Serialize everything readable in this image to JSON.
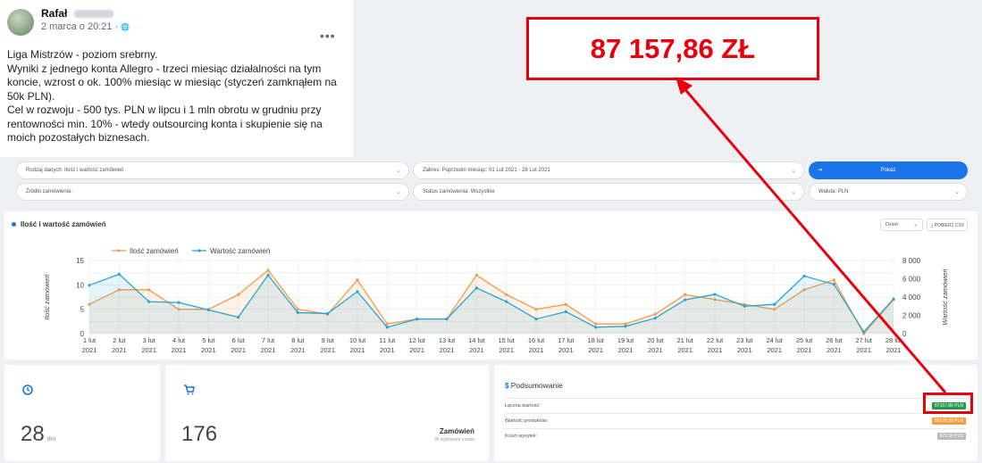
{
  "post": {
    "author": "Rafał",
    "date": "2 marca o 20:21 · ",
    "globe": "🌐",
    "more": "•••",
    "lines": [
      "Liga Mistrzów - poziom srebrny.",
      "Wyniki z jednego konta Allegro - trzeci miesiąc działalności na tym",
      "koncie, wzrost o ok. 100% miesiąc w miesiąc (styczeń zamknąłem na",
      "50k PLN).",
      "Cel w rozwoju - 500 tys. PLN w lipcu i 1 mln obrotu w grudniu przy",
      "rentowności min. 10% - wtedy outsourcing konta i skupienie się na",
      "moich pozostałych biznesach."
    ]
  },
  "filters": {
    "data_type": "Rodzaj danych: Ilość i wartość zamówień",
    "range": "Zakres: Poprzedni miesiąc: 01 Lut 2021 - 28 Lut 2021",
    "source": "Źródło zamówienia:",
    "status": "Status zamówienia: Wszystkie",
    "currency": "Waluta: PLN",
    "show": "Pokaż",
    "chev": "⌄"
  },
  "chart_card": {
    "title": "Ilość i wartość zamówień",
    "day_select": "Dzień",
    "csv": "⤓ POBIERZ CSV"
  },
  "chart_data": {
    "type": "line",
    "categories": [
      "1 lut",
      "2 lut",
      "3 lut",
      "4 lut",
      "5 lut",
      "6 lut",
      "7 lut",
      "8 lut",
      "9 lut",
      "10 lut",
      "11 lut",
      "12 lut",
      "13 lut",
      "14 lut",
      "15 lut",
      "16 lut",
      "17 lut",
      "18 lut",
      "19 lut",
      "20 lut",
      "21 lut",
      "22 lut",
      "23 lut",
      "24 lut",
      "25 lut",
      "26 lut",
      "27 lut",
      "28 lut"
    ],
    "year_label": "2021",
    "series": [
      {
        "name": "Ilość zamówień",
        "axis": "left",
        "color": "#f39b4a",
        "values": [
          6,
          9,
          9,
          5,
          5,
          8,
          13,
          5,
          4,
          11,
          2,
          3,
          3,
          12,
          8,
          5,
          6,
          2,
          2,
          4,
          8,
          7,
          6,
          5,
          9,
          11,
          0,
          7
        ]
      },
      {
        "name": "Wartość zamówień",
        "axis": "right",
        "color": "#2aa3d4",
        "values": [
          5300,
          6500,
          3500,
          3400,
          2600,
          1800,
          6400,
          2300,
          2200,
          4600,
          700,
          1600,
          1600,
          5000,
          3500,
          1600,
          2400,
          700,
          800,
          1700,
          3700,
          4300,
          3000,
          3200,
          6300,
          5400,
          200,
          3800
        ]
      }
    ],
    "ylabel_left": "Ilość zamówień",
    "ylabel_right": "Wartość zamówień",
    "ylim_left": [
      0,
      15
    ],
    "yticks_left": [
      "0",
      "5",
      "10",
      "15"
    ],
    "ylim_right": [
      0,
      8000
    ],
    "yticks_right": [
      "0",
      "2 000",
      "4 000",
      "6 000",
      "8 000"
    ],
    "grid": true,
    "legend": "top-left"
  },
  "cards": {
    "days_value": "28",
    "days_unit": "dni",
    "orders_value": "176",
    "orders_label": "Zamówień",
    "orders_sub": "W wybranym czasie",
    "summary_title": "Podsumowanie",
    "summary_rows": [
      {
        "label": "Łączna wartość:",
        "value": "87157.86 PLN",
        "color": "#1e9e4a"
      },
      {
        "label": "Wartość produktów:",
        "value": "86278.30 PLN",
        "color": "#f0a040"
      },
      {
        "label": "Koszt wysyłek:",
        "value": "879.56 PLN",
        "color": "#b8bcc2"
      }
    ]
  },
  "callout": {
    "text": "87 157,86 ZŁ",
    "color": "#e8000c"
  }
}
